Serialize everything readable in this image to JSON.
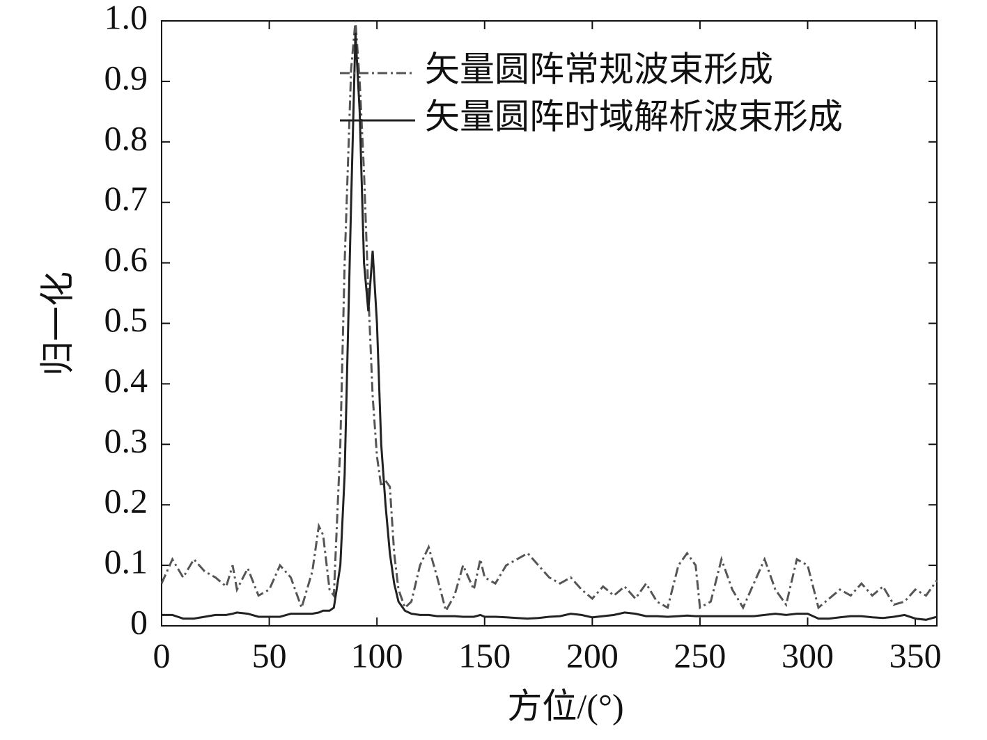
{
  "chart_data": {
    "type": "line",
    "xlabel": "方位/(°)",
    "ylabel": "归一化",
    "x": [
      0,
      5,
      10,
      15,
      20,
      25,
      30,
      33,
      35,
      40,
      45,
      50,
      55,
      60,
      65,
      70,
      73,
      75,
      78,
      80,
      83,
      85,
      88,
      90,
      92,
      94,
      96,
      98,
      100,
      102,
      104,
      106,
      108,
      110,
      113,
      116,
      120,
      124,
      128,
      132,
      136,
      140,
      145,
      148,
      150,
      155,
      160,
      165,
      170,
      175,
      180,
      185,
      190,
      195,
      200,
      205,
      210,
      215,
      220,
      225,
      230,
      235,
      240,
      244,
      248,
      250,
      255,
      260,
      265,
      270,
      275,
      280,
      285,
      290,
      295,
      300,
      305,
      310,
      315,
      320,
      325,
      330,
      335,
      340,
      345,
      350,
      355,
      360
    ],
    "series": [
      {
        "name": "矢量圆阵常规波束形成",
        "color": "#555555",
        "line_style": "dashdot",
        "values": [
          0.07,
          0.11,
          0.08,
          0.11,
          0.09,
          0.08,
          0.065,
          0.1,
          0.06,
          0.095,
          0.05,
          0.06,
          0.1,
          0.08,
          0.03,
          0.09,
          0.165,
          0.15,
          0.06,
          0.05,
          0.3,
          0.6,
          0.92,
          1.0,
          0.9,
          0.75,
          0.55,
          0.38,
          0.28,
          0.23,
          0.24,
          0.23,
          0.12,
          0.06,
          0.03,
          0.04,
          0.1,
          0.13,
          0.08,
          0.025,
          0.05,
          0.1,
          0.06,
          0.11,
          0.08,
          0.07,
          0.1,
          0.11,
          0.12,
          0.1,
          0.08,
          0.07,
          0.08,
          0.06,
          0.045,
          0.065,
          0.05,
          0.065,
          0.045,
          0.07,
          0.04,
          0.03,
          0.1,
          0.12,
          0.1,
          0.03,
          0.04,
          0.11,
          0.06,
          0.03,
          0.07,
          0.11,
          0.06,
          0.035,
          0.11,
          0.1,
          0.03,
          0.045,
          0.06,
          0.05,
          0.07,
          0.05,
          0.065,
          0.035,
          0.04,
          0.06,
          0.05,
          0.075
        ]
      },
      {
        "name": "矢量圆阵时域解析波束形成",
        "color": "#222222",
        "line_style": "solid",
        "values": [
          0.018,
          0.018,
          0.012,
          0.012,
          0.015,
          0.018,
          0.018,
          0.02,
          0.022,
          0.02,
          0.015,
          0.015,
          0.015,
          0.02,
          0.02,
          0.02,
          0.022,
          0.025,
          0.025,
          0.03,
          0.1,
          0.25,
          0.7,
          0.98,
          0.85,
          0.6,
          0.52,
          0.62,
          0.5,
          0.3,
          0.2,
          0.12,
          0.07,
          0.04,
          0.025,
          0.02,
          0.018,
          0.018,
          0.016,
          0.016,
          0.016,
          0.015,
          0.015,
          0.018,
          0.015,
          0.015,
          0.014,
          0.013,
          0.012,
          0.013,
          0.015,
          0.016,
          0.02,
          0.018,
          0.014,
          0.016,
          0.018,
          0.022,
          0.02,
          0.016,
          0.016,
          0.015,
          0.016,
          0.017,
          0.016,
          0.016,
          0.016,
          0.016,
          0.016,
          0.016,
          0.016,
          0.018,
          0.02,
          0.018,
          0.02,
          0.02,
          0.012,
          0.012,
          0.014,
          0.016,
          0.016,
          0.014,
          0.013,
          0.015,
          0.018,
          0.012,
          0.01,
          0.015
        ]
      }
    ],
    "xlim": [
      0,
      360
    ],
    "xticks": [
      0,
      50,
      100,
      150,
      200,
      250,
      300,
      350
    ],
    "ylim": [
      0,
      1
    ],
    "yticks": [
      0,
      0.1,
      0.2,
      0.3,
      0.4,
      0.5,
      0.6,
      0.7,
      0.8,
      0.9,
      {
        "value": 1,
        "label": "1.0"
      }
    ],
    "legend": "upper right",
    "grid": false
  }
}
